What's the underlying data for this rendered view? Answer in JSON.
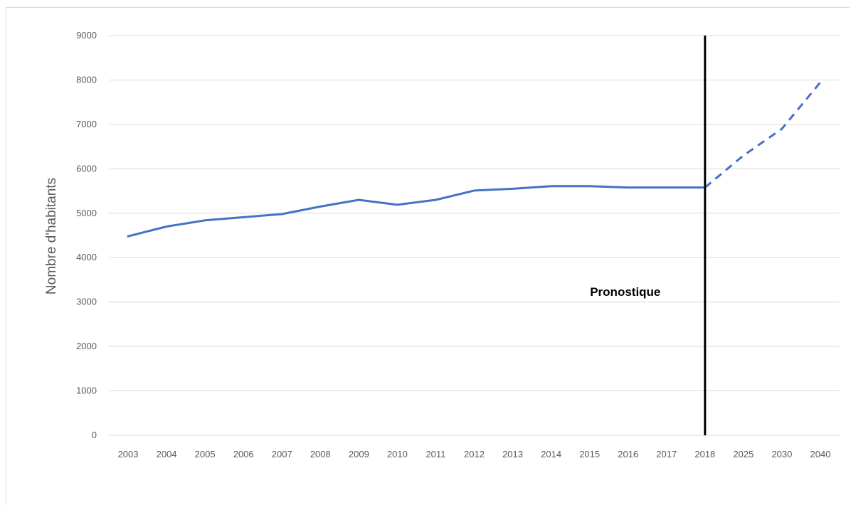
{
  "chart_data": {
    "type": "line",
    "title": "",
    "xlabel": "",
    "ylabel": "Nombre d'habitants",
    "ylim": [
      0,
      9000
    ],
    "yticks": [
      0,
      1000,
      2000,
      3000,
      4000,
      5000,
      6000,
      7000,
      8000,
      9000
    ],
    "grid": true,
    "legend": "none",
    "categories": [
      "2003",
      "2004",
      "2005",
      "2006",
      "2007",
      "2008",
      "2009",
      "2010",
      "2011",
      "2012",
      "2013",
      "2014",
      "2015",
      "2016",
      "2017",
      "2018",
      "2025",
      "2030",
      "2040"
    ],
    "series": [
      {
        "style": "solid",
        "color": "#4472c4",
        "values": [
          4480,
          4700,
          4840,
          4910,
          4980,
          5150,
          5300,
          5190,
          5300,
          5510,
          5550,
          5610,
          5610,
          5580,
          5580,
          5580,
          null,
          null,
          null
        ]
      },
      {
        "style": "dashed",
        "color": "#4472c4",
        "values": [
          null,
          null,
          null,
          null,
          null,
          null,
          null,
          null,
          null,
          null,
          null,
          null,
          null,
          null,
          null,
          5580,
          6300,
          6900,
          7950
        ]
      }
    ],
    "divider": {
      "at": "2018",
      "color": "#000000"
    },
    "annotation": "Pronostique"
  }
}
